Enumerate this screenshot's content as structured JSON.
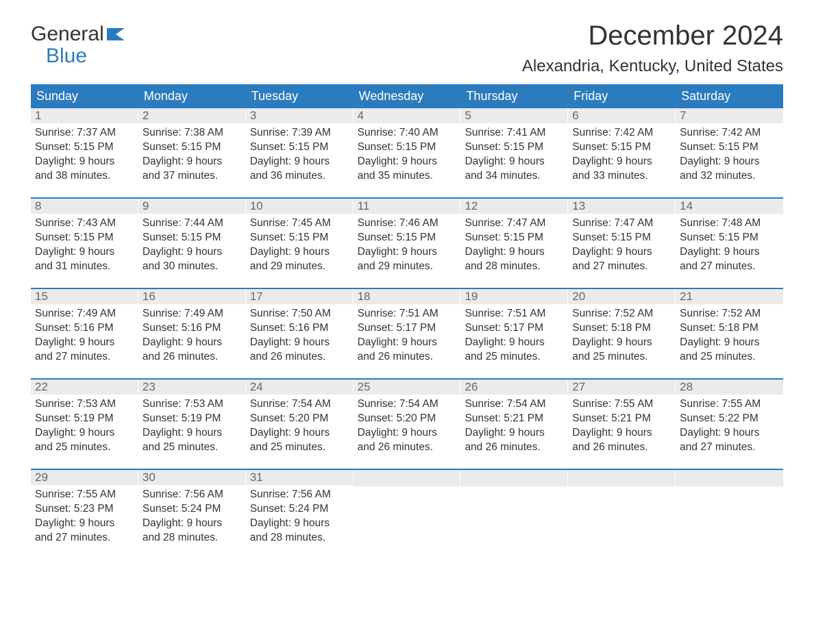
{
  "brand": {
    "name_line1": "General",
    "name_line2": "Blue",
    "flag_color": "#2b7bbf",
    "text_color": "#333333"
  },
  "title": "December 2024",
  "location": "Alexandria, Kentucky, United States",
  "colors": {
    "header_bg": "#2b7bbf",
    "header_text": "#ffffff",
    "daynum_bg": "#ebebeb",
    "daynum_text": "#666666",
    "body_text": "#333333",
    "rule": "#2b7bbf",
    "background": "#ffffff"
  },
  "fonts": {
    "title_size_pt": 30,
    "location_size_pt": 18,
    "weekday_size_pt": 14,
    "body_size_pt": 12
  },
  "weekdays": [
    "Sunday",
    "Monday",
    "Tuesday",
    "Wednesday",
    "Thursday",
    "Friday",
    "Saturday"
  ],
  "weeks": [
    [
      {
        "num": "1",
        "sunrise": "Sunrise: 7:37 AM",
        "sunset": "Sunset: 5:15 PM",
        "day1": "Daylight: 9 hours",
        "day2": "and 38 minutes."
      },
      {
        "num": "2",
        "sunrise": "Sunrise: 7:38 AM",
        "sunset": "Sunset: 5:15 PM",
        "day1": "Daylight: 9 hours",
        "day2": "and 37 minutes."
      },
      {
        "num": "3",
        "sunrise": "Sunrise: 7:39 AM",
        "sunset": "Sunset: 5:15 PM",
        "day1": "Daylight: 9 hours",
        "day2": "and 36 minutes."
      },
      {
        "num": "4",
        "sunrise": "Sunrise: 7:40 AM",
        "sunset": "Sunset: 5:15 PM",
        "day1": "Daylight: 9 hours",
        "day2": "and 35 minutes."
      },
      {
        "num": "5",
        "sunrise": "Sunrise: 7:41 AM",
        "sunset": "Sunset: 5:15 PM",
        "day1": "Daylight: 9 hours",
        "day2": "and 34 minutes."
      },
      {
        "num": "6",
        "sunrise": "Sunrise: 7:42 AM",
        "sunset": "Sunset: 5:15 PM",
        "day1": "Daylight: 9 hours",
        "day2": "and 33 minutes."
      },
      {
        "num": "7",
        "sunrise": "Sunrise: 7:42 AM",
        "sunset": "Sunset: 5:15 PM",
        "day1": "Daylight: 9 hours",
        "day2": "and 32 minutes."
      }
    ],
    [
      {
        "num": "8",
        "sunrise": "Sunrise: 7:43 AM",
        "sunset": "Sunset: 5:15 PM",
        "day1": "Daylight: 9 hours",
        "day2": "and 31 minutes."
      },
      {
        "num": "9",
        "sunrise": "Sunrise: 7:44 AM",
        "sunset": "Sunset: 5:15 PM",
        "day1": "Daylight: 9 hours",
        "day2": "and 30 minutes."
      },
      {
        "num": "10",
        "sunrise": "Sunrise: 7:45 AM",
        "sunset": "Sunset: 5:15 PM",
        "day1": "Daylight: 9 hours",
        "day2": "and 29 minutes."
      },
      {
        "num": "11",
        "sunrise": "Sunrise: 7:46 AM",
        "sunset": "Sunset: 5:15 PM",
        "day1": "Daylight: 9 hours",
        "day2": "and 29 minutes."
      },
      {
        "num": "12",
        "sunrise": "Sunrise: 7:47 AM",
        "sunset": "Sunset: 5:15 PM",
        "day1": "Daylight: 9 hours",
        "day2": "and 28 minutes."
      },
      {
        "num": "13",
        "sunrise": "Sunrise: 7:47 AM",
        "sunset": "Sunset: 5:15 PM",
        "day1": "Daylight: 9 hours",
        "day2": "and 27 minutes."
      },
      {
        "num": "14",
        "sunrise": "Sunrise: 7:48 AM",
        "sunset": "Sunset: 5:15 PM",
        "day1": "Daylight: 9 hours",
        "day2": "and 27 minutes."
      }
    ],
    [
      {
        "num": "15",
        "sunrise": "Sunrise: 7:49 AM",
        "sunset": "Sunset: 5:16 PM",
        "day1": "Daylight: 9 hours",
        "day2": "and 27 minutes."
      },
      {
        "num": "16",
        "sunrise": "Sunrise: 7:49 AM",
        "sunset": "Sunset: 5:16 PM",
        "day1": "Daylight: 9 hours",
        "day2": "and 26 minutes."
      },
      {
        "num": "17",
        "sunrise": "Sunrise: 7:50 AM",
        "sunset": "Sunset: 5:16 PM",
        "day1": "Daylight: 9 hours",
        "day2": "and 26 minutes."
      },
      {
        "num": "18",
        "sunrise": "Sunrise: 7:51 AM",
        "sunset": "Sunset: 5:17 PM",
        "day1": "Daylight: 9 hours",
        "day2": "and 26 minutes."
      },
      {
        "num": "19",
        "sunrise": "Sunrise: 7:51 AM",
        "sunset": "Sunset: 5:17 PM",
        "day1": "Daylight: 9 hours",
        "day2": "and 25 minutes."
      },
      {
        "num": "20",
        "sunrise": "Sunrise: 7:52 AM",
        "sunset": "Sunset: 5:18 PM",
        "day1": "Daylight: 9 hours",
        "day2": "and 25 minutes."
      },
      {
        "num": "21",
        "sunrise": "Sunrise: 7:52 AM",
        "sunset": "Sunset: 5:18 PM",
        "day1": "Daylight: 9 hours",
        "day2": "and 25 minutes."
      }
    ],
    [
      {
        "num": "22",
        "sunrise": "Sunrise: 7:53 AM",
        "sunset": "Sunset: 5:19 PM",
        "day1": "Daylight: 9 hours",
        "day2": "and 25 minutes."
      },
      {
        "num": "23",
        "sunrise": "Sunrise: 7:53 AM",
        "sunset": "Sunset: 5:19 PM",
        "day1": "Daylight: 9 hours",
        "day2": "and 25 minutes."
      },
      {
        "num": "24",
        "sunrise": "Sunrise: 7:54 AM",
        "sunset": "Sunset: 5:20 PM",
        "day1": "Daylight: 9 hours",
        "day2": "and 25 minutes."
      },
      {
        "num": "25",
        "sunrise": "Sunrise: 7:54 AM",
        "sunset": "Sunset: 5:20 PM",
        "day1": "Daylight: 9 hours",
        "day2": "and 26 minutes."
      },
      {
        "num": "26",
        "sunrise": "Sunrise: 7:54 AM",
        "sunset": "Sunset: 5:21 PM",
        "day1": "Daylight: 9 hours",
        "day2": "and 26 minutes."
      },
      {
        "num": "27",
        "sunrise": "Sunrise: 7:55 AM",
        "sunset": "Sunset: 5:21 PM",
        "day1": "Daylight: 9 hours",
        "day2": "and 26 minutes."
      },
      {
        "num": "28",
        "sunrise": "Sunrise: 7:55 AM",
        "sunset": "Sunset: 5:22 PM",
        "day1": "Daylight: 9 hours",
        "day2": "and 27 minutes."
      }
    ],
    [
      {
        "num": "29",
        "sunrise": "Sunrise: 7:55 AM",
        "sunset": "Sunset: 5:23 PM",
        "day1": "Daylight: 9 hours",
        "day2": "and 27 minutes."
      },
      {
        "num": "30",
        "sunrise": "Sunrise: 7:56 AM",
        "sunset": "Sunset: 5:24 PM",
        "day1": "Daylight: 9 hours",
        "day2": "and 28 minutes."
      },
      {
        "num": "31",
        "sunrise": "Sunrise: 7:56 AM",
        "sunset": "Sunset: 5:24 PM",
        "day1": "Daylight: 9 hours",
        "day2": "and 28 minutes."
      },
      {
        "empty": true
      },
      {
        "empty": true
      },
      {
        "empty": true
      },
      {
        "empty": true
      }
    ]
  ]
}
